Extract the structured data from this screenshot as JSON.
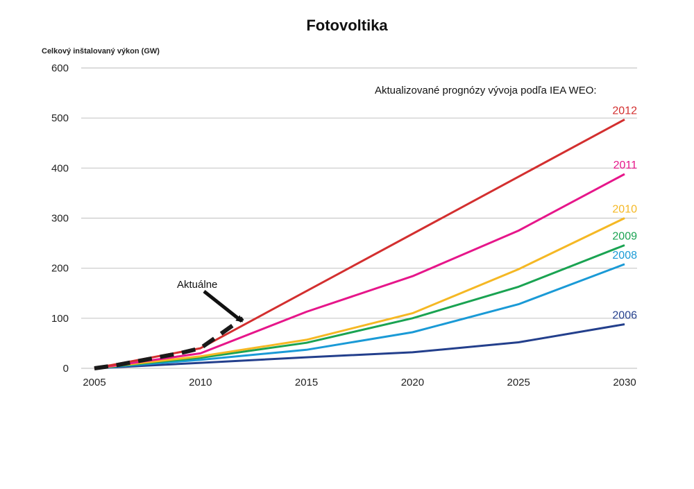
{
  "chart_data": {
    "type": "line",
    "title": "Fotovoltika",
    "ylabel": "Celkový inštalovaný výkon (GW)",
    "xlabel": "",
    "xlim": [
      2005,
      2030
    ],
    "ylim": [
      0,
      600
    ],
    "x_ticks": [
      "2005",
      "2010",
      "2015",
      "2020",
      "2025",
      "2030"
    ],
    "y_ticks": [
      "0",
      "100",
      "200",
      "300",
      "400",
      "500",
      "600"
    ],
    "grid": "horizontal",
    "legend_title": "Aktualizované prognózy vývoja podľa IEA WEO:",
    "series": [
      {
        "name": "2012",
        "color": "#d32f2f",
        "x": [
          2005,
          2010,
          2030
        ],
        "y": [
          0,
          40,
          497
        ]
      },
      {
        "name": "2011",
        "color": "#e6168a",
        "x": [
          2005,
          2010,
          2015,
          2020,
          2025,
          2030
        ],
        "y": [
          0,
          30,
          113,
          184,
          275,
          388
        ]
      },
      {
        "name": "2010",
        "color": "#f5b824",
        "x": [
          2005,
          2010,
          2015,
          2020,
          2025,
          2030
        ],
        "y": [
          0,
          24,
          57,
          110,
          198,
          300
        ]
      },
      {
        "name": "2009",
        "color": "#1aa352",
        "x": [
          2005,
          2010,
          2015,
          2020,
          2025,
          2030
        ],
        "y": [
          0,
          21,
          51,
          100,
          163,
          246
        ]
      },
      {
        "name": "2008",
        "color": "#1a9ad6",
        "x": [
          2005,
          2010,
          2015,
          2020,
          2025,
          2030
        ],
        "y": [
          0,
          17,
          37,
          72,
          128,
          208
        ]
      },
      {
        "name": "2006",
        "color": "#233f8c",
        "x": [
          2005,
          2010,
          2015,
          2020,
          2025,
          2030
        ],
        "y": [
          0,
          11,
          22,
          32,
          52,
          88
        ]
      }
    ],
    "actual": {
      "label": "Aktuálne",
      "color": "#1a1a1a",
      "x": [
        2005,
        2006,
        2007,
        2008,
        2009,
        2010,
        2011,
        2012
      ],
      "y": [
        0,
        6,
        14,
        22,
        30,
        40,
        70,
        100
      ]
    }
  }
}
